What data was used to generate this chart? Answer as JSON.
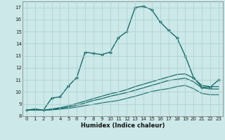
{
  "title": "",
  "xlabel": "Humidex (Indice chaleur)",
  "ylabel": "",
  "xlim": [
    -0.5,
    23.5
  ],
  "ylim": [
    8,
    17.5
  ],
  "yticks": [
    8,
    9,
    10,
    11,
    12,
    13,
    14,
    15,
    16,
    17
  ],
  "xticks": [
    0,
    1,
    2,
    3,
    4,
    5,
    6,
    7,
    8,
    9,
    10,
    11,
    12,
    13,
    14,
    15,
    16,
    17,
    18,
    19,
    20,
    21,
    22,
    23
  ],
  "bg_color": "#cce8e8",
  "grid_color": "#aacfcf",
  "line_color": "#1a6b6b",
  "series": [
    {
      "x": [
        0,
        1,
        2,
        3,
        4,
        5,
        6,
        7,
        8,
        9,
        10,
        11,
        12,
        13,
        14,
        15,
        16,
        17,
        18,
        19,
        20,
        21,
        22,
        23
      ],
      "y": [
        8.5,
        8.6,
        8.5,
        9.5,
        9.6,
        10.5,
        11.2,
        13.3,
        13.2,
        13.1,
        13.3,
        14.5,
        15.0,
        17.0,
        17.1,
        16.8,
        15.8,
        15.1,
        14.5,
        13.0,
        11.2,
        10.4,
        10.4,
        11.0
      ],
      "marker": "D",
      "markersize": 2.0,
      "linewidth": 1.0
    },
    {
      "x": [
        0,
        1,
        2,
        3,
        4,
        5,
        6,
        7,
        8,
        9,
        10,
        11,
        12,
        13,
        14,
        15,
        16,
        17,
        18,
        19,
        20,
        21,
        22,
        23
      ],
      "y": [
        8.5,
        8.5,
        8.5,
        8.6,
        8.7,
        8.85,
        9.05,
        9.25,
        9.45,
        9.65,
        9.85,
        10.0,
        10.2,
        10.45,
        10.65,
        10.85,
        11.05,
        11.25,
        11.45,
        11.5,
        11.15,
        10.55,
        10.45,
        10.45
      ],
      "marker": null,
      "markersize": 0,
      "linewidth": 0.9
    },
    {
      "x": [
        0,
        1,
        2,
        3,
        4,
        5,
        6,
        7,
        8,
        9,
        10,
        11,
        12,
        13,
        14,
        15,
        16,
        17,
        18,
        19,
        20,
        21,
        22,
        23
      ],
      "y": [
        8.5,
        8.5,
        8.5,
        8.55,
        8.65,
        8.75,
        8.9,
        9.1,
        9.3,
        9.45,
        9.65,
        9.8,
        9.95,
        10.15,
        10.35,
        10.55,
        10.75,
        10.95,
        11.05,
        11.15,
        10.85,
        10.35,
        10.25,
        10.25
      ],
      "marker": null,
      "markersize": 0,
      "linewidth": 0.9
    },
    {
      "x": [
        0,
        1,
        2,
        3,
        4,
        5,
        6,
        7,
        8,
        9,
        10,
        11,
        12,
        13,
        14,
        15,
        16,
        17,
        18,
        19,
        20,
        21,
        22,
        23
      ],
      "y": [
        8.5,
        8.5,
        8.5,
        8.52,
        8.58,
        8.65,
        8.75,
        8.88,
        8.98,
        9.1,
        9.2,
        9.3,
        9.48,
        9.65,
        9.85,
        10.05,
        10.18,
        10.28,
        10.45,
        10.55,
        10.28,
        9.88,
        9.78,
        9.78
      ],
      "marker": null,
      "markersize": 0,
      "linewidth": 0.8
    }
  ]
}
